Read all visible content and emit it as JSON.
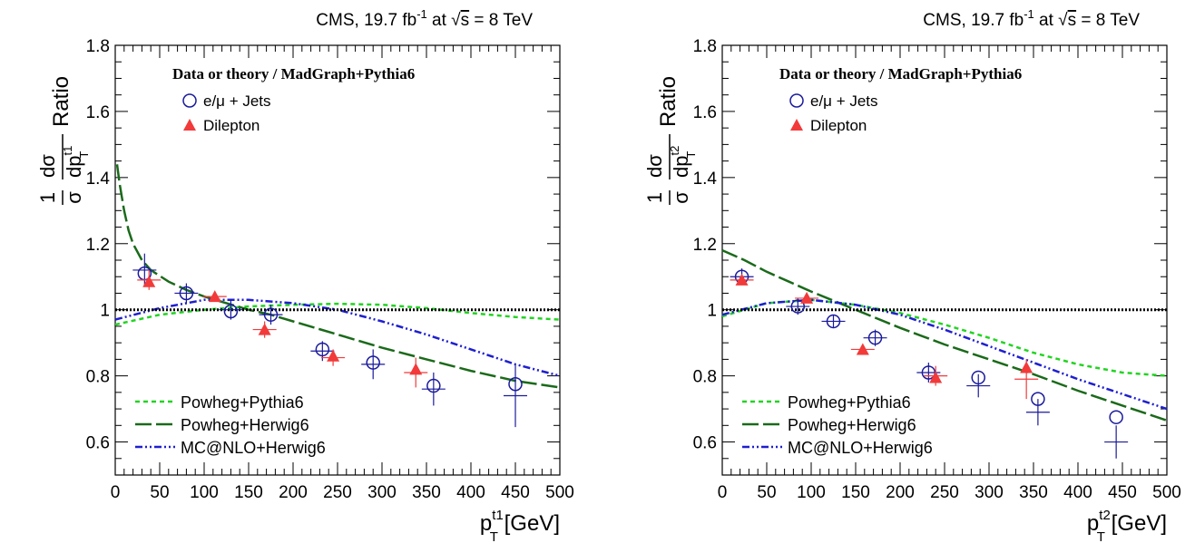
{
  "style": {
    "colors": {
      "ej": "#1a1a9c",
      "dil": "#f23a3a",
      "pp6": "#22d422",
      "ph6": "#1a6a1a",
      "mch6": "#1f1fd0",
      "ref": "#000000"
    }
  },
  "chart_data": [
    {
      "type": "scatter",
      "header": {
        "left": "CMS, 19.7 fb",
        "sup": "-1",
        "mid": " at ",
        "rad": "√",
        "s": "s",
        "right": " = 8 TeV"
      },
      "xlabel": {
        "p": "p",
        "sup": "t1",
        "sub": "T",
        "unit": " [GeV]"
      },
      "ylabel": {
        "one": "1",
        "sigma": "σ",
        "num": "dσ",
        "den": "dp",
        "den_sup": "t1",
        "den_sub": "T",
        "ratio": "Ratio"
      },
      "xlim": [
        0,
        500
      ],
      "ylim": [
        0.5,
        1.8
      ],
      "x_ticks": [
        0,
        50,
        100,
        150,
        200,
        250,
        300,
        350,
        400,
        450,
        500
      ],
      "x_tick_labels": [
        "0",
        "50",
        "100",
        "150",
        "200",
        "250",
        "300",
        "350",
        "400",
        "450",
        "500"
      ],
      "y_ticks": [
        0.6,
        0.8,
        1.0,
        1.2,
        1.4,
        1.6,
        1.8
      ],
      "y_tick_labels": [
        "0.6",
        "0.8",
        "1",
        "1.2",
        "1.4",
        "1.6",
        "1.8"
      ],
      "legend_title": "Data or theory / MadGraph+Pythia6",
      "legend_markers": [
        {
          "key": "ej",
          "marker": "circle",
          "label": "e/μ + Jets"
        },
        {
          "key": "dil",
          "marker": "triangle",
          "label": "Dilepton"
        }
      ],
      "legend_lines": [
        {
          "key": "pp6",
          "dash": "5,4",
          "label": "Powheg+Pythia6"
        },
        {
          "key": "ph6",
          "dash": "18,5",
          "label": "Powheg+Herwig6"
        },
        {
          "key": "mch6",
          "dash": "8,3,2,3,2,3",
          "label": "MC@NLO+Herwig6"
        }
      ],
      "series": [
        {
          "name": "e/μ + Jets",
          "key": "ej",
          "marker": "circle",
          "x": [
            33,
            80,
            130,
            175,
            233,
            290,
            358,
            450
          ],
          "y": [
            1.11,
            1.05,
            0.995,
            0.985,
            0.88,
            0.84,
            0.77,
            0.775
          ],
          "cross": [
            [
              33,
              1.12,
              0.05
            ],
            [
              80,
              1.05,
              0.03
            ],
            [
              130,
              1.0,
              0.03
            ],
            [
              175,
              0.985,
              0.03
            ],
            [
              233,
              0.875,
              0.03
            ],
            [
              290,
              0.835,
              0.045
            ],
            [
              358,
              0.76,
              0.05
            ],
            [
              450,
              0.74,
              0.095
            ]
          ]
        },
        {
          "name": "Dilepton",
          "key": "dil",
          "marker": "triangle",
          "x": [
            38,
            112,
            168,
            245,
            338
          ],
          "y": [
            1.085,
            1.04,
            0.94,
            0.86,
            0.82
          ],
          "cross": [
            [
              38,
              1.09,
              0.03
            ],
            [
              112,
              1.04,
              0.015
            ],
            [
              168,
              0.94,
              0.025
            ],
            [
              245,
              0.855,
              0.025
            ],
            [
              338,
              0.81,
              0.045
            ]
          ]
        }
      ],
      "curves": [
        {
          "name": "Powheg+Pythia6",
          "key": "pp6",
          "dash": "5,4",
          "x": [
            0,
            50,
            100,
            150,
            200,
            250,
            300,
            350,
            400,
            450,
            500
          ],
          "y": [
            0.955,
            0.985,
            1.0,
            1.01,
            1.015,
            1.018,
            1.015,
            1.005,
            0.99,
            0.978,
            0.97
          ]
        },
        {
          "name": "Powheg+Herwig6",
          "key": "ph6",
          "dash": "18,5",
          "x": [
            2,
            5,
            10,
            15,
            20,
            30,
            40,
            60,
            80,
            100,
            125,
            150,
            175,
            200,
            250,
            300,
            350,
            400,
            450,
            500
          ],
          "y": [
            1.44,
            1.38,
            1.3,
            1.24,
            1.2,
            1.15,
            1.12,
            1.085,
            1.06,
            1.04,
            1.02,
            1.0,
            0.985,
            0.965,
            0.925,
            0.885,
            0.85,
            0.815,
            0.785,
            0.765
          ]
        },
        {
          "name": "MC@NLO+Herwig6",
          "key": "mch6",
          "dash": "8,3,2,3,2,3",
          "x": [
            0,
            50,
            100,
            150,
            200,
            250,
            300,
            350,
            400,
            450,
            500
          ],
          "y": [
            0.97,
            1.005,
            1.03,
            1.03,
            1.02,
            1.0,
            0.965,
            0.925,
            0.88,
            0.835,
            0.8
          ]
        },
        {
          "name": "",
          "key": "ref",
          "dash": "2,2",
          "x": [
            0,
            500
          ],
          "y": [
            1.0,
            1.0
          ]
        }
      ]
    },
    {
      "type": "scatter",
      "header": {
        "left": "CMS, 19.7 fb",
        "sup": "-1",
        "mid": " at ",
        "rad": "√",
        "s": "s",
        "right": " = 8 TeV"
      },
      "xlabel": {
        "p": "p",
        "sup": "t2",
        "sub": "T",
        "unit": " [GeV]"
      },
      "ylabel": {
        "one": "1",
        "sigma": "σ",
        "num": "dσ",
        "den": "dp",
        "den_sup": "t2",
        "den_sub": "T",
        "ratio": "Ratio"
      },
      "xlim": [
        0,
        500
      ],
      "ylim": [
        0.5,
        1.8
      ],
      "x_ticks": [
        0,
        50,
        100,
        150,
        200,
        250,
        300,
        350,
        400,
        450,
        500
      ],
      "x_tick_labels": [
        "0",
        "50",
        "100",
        "150",
        "200",
        "250",
        "300",
        "350",
        "400",
        "450",
        "500"
      ],
      "y_ticks": [
        0.6,
        0.8,
        1.0,
        1.2,
        1.4,
        1.6,
        1.8
      ],
      "y_tick_labels": [
        "0.6",
        "0.8",
        "1",
        "1.2",
        "1.4",
        "1.6",
        "1.8"
      ],
      "legend_title": "Data or theory / MadGraph+Pythia6",
      "legend_markers": [
        {
          "key": "ej",
          "marker": "circle",
          "label": "e/μ + Jets"
        },
        {
          "key": "dil",
          "marker": "triangle",
          "label": "Dilepton"
        }
      ],
      "legend_lines": [
        {
          "key": "pp6",
          "dash": "5,4",
          "label": "Powheg+Pythia6"
        },
        {
          "key": "ph6",
          "dash": "18,5",
          "label": "Powheg+Herwig6"
        },
        {
          "key": "mch6",
          "dash": "8,3,2,3,2,3",
          "label": "MC@NLO+Herwig6"
        }
      ],
      "series": [
        {
          "name": "e/μ + Jets",
          "key": "ej",
          "marker": "circle",
          "x": [
            22,
            85,
            125,
            172,
            232,
            288,
            355,
            443
          ],
          "y": [
            1.1,
            1.01,
            0.965,
            0.915,
            0.81,
            0.795,
            0.73,
            0.675
          ],
          "cross": [
            [
              22,
              1.1,
              0.025
            ],
            [
              85,
              1.01,
              0.025
            ],
            [
              125,
              0.965,
              0.02
            ],
            [
              172,
              0.915,
              0.025
            ],
            [
              232,
              0.81,
              0.03
            ],
            [
              288,
              0.77,
              0.035
            ],
            [
              355,
              0.69,
              0.04
            ],
            [
              443,
              0.6,
              0.05
            ]
          ]
        },
        {
          "name": "Dilepton",
          "key": "dil",
          "marker": "triangle",
          "x": [
            22,
            95,
            158,
            240,
            342
          ],
          "y": [
            1.09,
            1.035,
            0.88,
            0.795,
            0.825
          ],
          "cross": [
            [
              22,
              1.09,
              0.015
            ],
            [
              95,
              1.035,
              0.015
            ],
            [
              158,
              0.88,
              0.015
            ],
            [
              240,
              0.8,
              0.03
            ],
            [
              342,
              0.79,
              0.06
            ]
          ]
        }
      ],
      "curves": [
        {
          "name": "Powheg+Pythia6",
          "key": "pp6",
          "dash": "5,4",
          "x": [
            0,
            50,
            100,
            150,
            200,
            250,
            300,
            350,
            400,
            450,
            500
          ],
          "y": [
            0.98,
            1.02,
            1.03,
            1.015,
            0.99,
            0.955,
            0.915,
            0.87,
            0.835,
            0.81,
            0.8
          ]
        },
        {
          "name": "Powheg+Herwig6",
          "key": "ph6",
          "dash": "18,5",
          "x": [
            0,
            25,
            50,
            75,
            100,
            150,
            200,
            250,
            300,
            350,
            400,
            450,
            500
          ],
          "y": [
            1.18,
            1.15,
            1.115,
            1.085,
            1.055,
            1.0,
            0.945,
            0.895,
            0.85,
            0.805,
            0.755,
            0.71,
            0.665
          ]
        },
        {
          "name": "MC@NLO+Herwig6",
          "key": "mch6",
          "dash": "8,3,2,3,2,3",
          "x": [
            0,
            50,
            100,
            150,
            200,
            250,
            300,
            350,
            400,
            450,
            500
          ],
          "y": [
            0.985,
            1.02,
            1.03,
            1.015,
            0.985,
            0.94,
            0.89,
            0.84,
            0.79,
            0.745,
            0.7
          ]
        },
        {
          "name": "",
          "key": "ref",
          "dash": "2,2",
          "x": [
            0,
            500
          ],
          "y": [
            1.0,
            1.0
          ]
        }
      ]
    }
  ]
}
